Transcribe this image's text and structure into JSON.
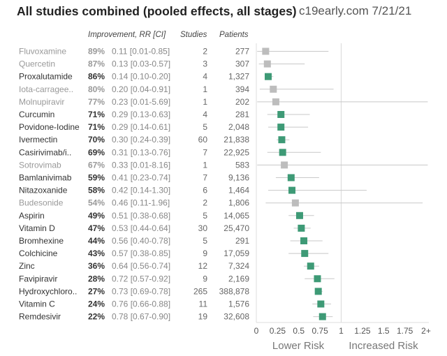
{
  "header": {
    "title": "All studies combined (pooled effects, all stages)",
    "source": "c19early.com 7/21/21",
    "col_improvement": "Improvement, RR [CI]",
    "col_studies": "Studies",
    "col_patients": "Patients"
  },
  "colors": {
    "significant": "#3e9a76",
    "not_significant": "#bdbdbd",
    "sig_text": "#333333",
    "nonsig_text": "#999999",
    "grid": "#dddddd",
    "ci_line": "#c8c8c8"
  },
  "chart_data": {
    "type": "forest",
    "title": "All studies combined (pooled effects, all stages)",
    "xlim": [
      0,
      2
    ],
    "x_ticks": [
      "0",
      "0.25",
      "0.5",
      "0.75",
      "1",
      "1.25",
      "1.5",
      "1.75",
      "2+"
    ],
    "x_tick_values": [
      0,
      0.25,
      0.5,
      0.75,
      1,
      1.25,
      1.5,
      1.75,
      2
    ],
    "reference_line": 1,
    "left_label": "Lower Risk",
    "right_label": "Increased Risk",
    "rows": [
      {
        "name": "Fluvoxamine",
        "improvement": "89%",
        "rr_text": "0.11 [0.01-0.85]",
        "rr": 0.11,
        "lo": 0.01,
        "hi": 0.85,
        "studies": "2",
        "patients": "277",
        "significant": false
      },
      {
        "name": "Quercetin",
        "improvement": "87%",
        "rr_text": "0.13 [0.03-0.57]",
        "rr": 0.13,
        "lo": 0.03,
        "hi": 0.57,
        "studies": "3",
        "patients": "307",
        "significant": false
      },
      {
        "name": "Proxalutamide",
        "improvement": "86%",
        "rr_text": "0.14 [0.10-0.20]",
        "rr": 0.14,
        "lo": 0.1,
        "hi": 0.2,
        "studies": "4",
        "patients": "1,327",
        "significant": true
      },
      {
        "name": "Iota-carragee..",
        "improvement": "80%",
        "rr_text": "0.20 [0.04-0.91]",
        "rr": 0.2,
        "lo": 0.04,
        "hi": 0.91,
        "studies": "1",
        "patients": "394",
        "significant": false
      },
      {
        "name": "Molnupiravir",
        "improvement": "77%",
        "rr_text": "0.23 [0.01-5.69]",
        "rr": 0.23,
        "lo": 0.01,
        "hi": 5.69,
        "studies": "1",
        "patients": "202",
        "significant": false
      },
      {
        "name": "Curcumin",
        "improvement": "71%",
        "rr_text": "0.29 [0.13-0.63]",
        "rr": 0.29,
        "lo": 0.13,
        "hi": 0.63,
        "studies": "4",
        "patients": "281",
        "significant": true
      },
      {
        "name": "Povidone-Iodine",
        "improvement": "71%",
        "rr_text": "0.29 [0.14-0.61]",
        "rr": 0.29,
        "lo": 0.14,
        "hi": 0.61,
        "studies": "5",
        "patients": "2,048",
        "significant": true
      },
      {
        "name": "Ivermectin",
        "improvement": "70%",
        "rr_text": "0.30 [0.24-0.39]",
        "rr": 0.3,
        "lo": 0.24,
        "hi": 0.39,
        "studies": "60",
        "patients": "21,838",
        "significant": true
      },
      {
        "name": "Casirivimab/i..",
        "improvement": "69%",
        "rr_text": "0.31 [0.13-0.76]",
        "rr": 0.31,
        "lo": 0.13,
        "hi": 0.76,
        "studies": "7",
        "patients": "22,925",
        "significant": true
      },
      {
        "name": "Sotrovimab",
        "improvement": "67%",
        "rr_text": "0.33 [0.01-8.16]",
        "rr": 0.33,
        "lo": 0.01,
        "hi": 8.16,
        "studies": "1",
        "patients": "583",
        "significant": false
      },
      {
        "name": "Bamlanivimab",
        "improvement": "59%",
        "rr_text": "0.41 [0.23-0.74]",
        "rr": 0.41,
        "lo": 0.23,
        "hi": 0.74,
        "studies": "7",
        "patients": "9,136",
        "significant": true
      },
      {
        "name": "Nitazoxanide",
        "improvement": "58%",
        "rr_text": "0.42 [0.14-1.30]",
        "rr": 0.42,
        "lo": 0.14,
        "hi": 1.3,
        "studies": "6",
        "patients": "1,464",
        "significant": true
      },
      {
        "name": "Budesonide",
        "improvement": "54%",
        "rr_text": "0.46 [0.11-1.96]",
        "rr": 0.46,
        "lo": 0.11,
        "hi": 1.96,
        "studies": "2",
        "patients": "1,806",
        "significant": false
      },
      {
        "name": "Aspirin",
        "improvement": "49%",
        "rr_text": "0.51 [0.38-0.68]",
        "rr": 0.51,
        "lo": 0.38,
        "hi": 0.68,
        "studies": "5",
        "patients": "14,065",
        "significant": true
      },
      {
        "name": "Vitamin D",
        "improvement": "47%",
        "rr_text": "0.53 [0.44-0.64]",
        "rr": 0.53,
        "lo": 0.44,
        "hi": 0.64,
        "studies": "30",
        "patients": "25,470",
        "significant": true
      },
      {
        "name": "Bromhexine",
        "improvement": "44%",
        "rr_text": "0.56 [0.40-0.78]",
        "rr": 0.56,
        "lo": 0.4,
        "hi": 0.78,
        "studies": "5",
        "patients": "291",
        "significant": true
      },
      {
        "name": "Colchicine",
        "improvement": "43%",
        "rr_text": "0.57 [0.38-0.85]",
        "rr": 0.57,
        "lo": 0.38,
        "hi": 0.85,
        "studies": "9",
        "patients": "17,059",
        "significant": true
      },
      {
        "name": "Zinc",
        "improvement": "36%",
        "rr_text": "0.64 [0.56-0.74]",
        "rr": 0.64,
        "lo": 0.56,
        "hi": 0.74,
        "studies": "12",
        "patients": "7,324",
        "significant": true
      },
      {
        "name": "Favipiravir",
        "improvement": "28%",
        "rr_text": "0.72 [0.57-0.92]",
        "rr": 0.72,
        "lo": 0.57,
        "hi": 0.92,
        "studies": "9",
        "patients": "2,169",
        "significant": true
      },
      {
        "name": "Hydroxychloro..",
        "improvement": "27%",
        "rr_text": "0.73 [0.69-0.78]",
        "rr": 0.73,
        "lo": 0.69,
        "hi": 0.78,
        "studies": "265",
        "patients": "388,878",
        "significant": true
      },
      {
        "name": "Vitamin C",
        "improvement": "24%",
        "rr_text": "0.76 [0.66-0.88]",
        "rr": 0.76,
        "lo": 0.66,
        "hi": 0.88,
        "studies": "11",
        "patients": "1,576",
        "significant": true
      },
      {
        "name": "Remdesivir",
        "improvement": "22%",
        "rr_text": "0.78 [0.67-0.90]",
        "rr": 0.78,
        "lo": 0.67,
        "hi": 0.9,
        "studies": "19",
        "patients": "32,608",
        "significant": true
      }
    ]
  }
}
